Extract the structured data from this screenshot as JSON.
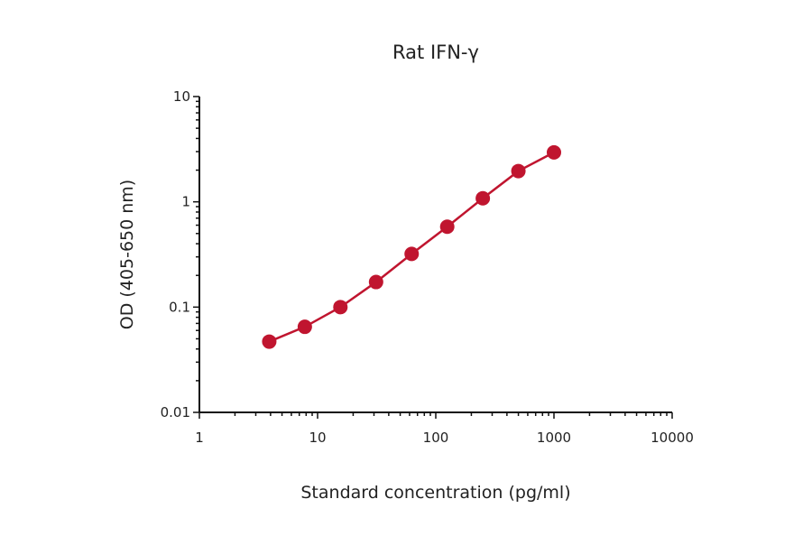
{
  "chart_data": {
    "type": "line",
    "title": "Rat IFN-γ",
    "xlabel": "Standard concentration (pg/ml)",
    "ylabel": "OD (405-650 nm)",
    "x_scale": "log",
    "y_scale": "log",
    "xlim": [
      1,
      10000
    ],
    "ylim": [
      0.01,
      10
    ],
    "x_ticks": [
      "1",
      "10",
      "100",
      "1000",
      "10000"
    ],
    "y_ticks": [
      "0.01",
      "0.1",
      "1",
      "10"
    ],
    "grid": false,
    "series": [
      {
        "color": "#c0152f",
        "x": [
          3.9,
          7.8,
          15.6,
          31.25,
          62.5,
          125,
          250,
          500,
          1000
        ],
        "y": [
          0.047,
          0.065,
          0.1,
          0.173,
          0.32,
          0.58,
          1.08,
          1.96,
          2.95
        ]
      }
    ]
  }
}
